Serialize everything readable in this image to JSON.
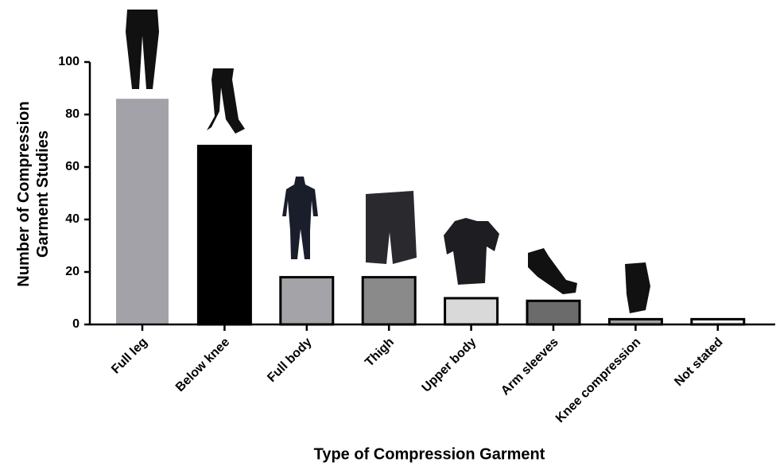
{
  "chart_data": {
    "type": "bar",
    "x_label": "Type of Compression Garment",
    "y_label": "Number of Compression Garment Studies",
    "categories": [
      "Full leg",
      "Below knee",
      "Full body",
      "Thigh",
      "Upper body",
      "Arm sleeves",
      "Knee compression",
      "Not stated"
    ],
    "values": [
      86,
      68,
      18,
      18,
      10,
      9,
      2,
      2
    ],
    "colors": [
      "#a3a2a8",
      "#000000",
      "#a3a3a8",
      "#8a8a8a",
      "#d9d9d9",
      "#6b6b6b",
      "#a0a0a0",
      "#f2f2f2"
    ],
    "edgecolors": [
      "none",
      "#000000",
      "#000000",
      "#000000",
      "#000000",
      "#000000",
      "#000000",
      "#000000"
    ],
    "ylim": [
      0,
      100
    ],
    "yticks": [
      0,
      20,
      40,
      60,
      80,
      100
    ],
    "grid": false
  }
}
